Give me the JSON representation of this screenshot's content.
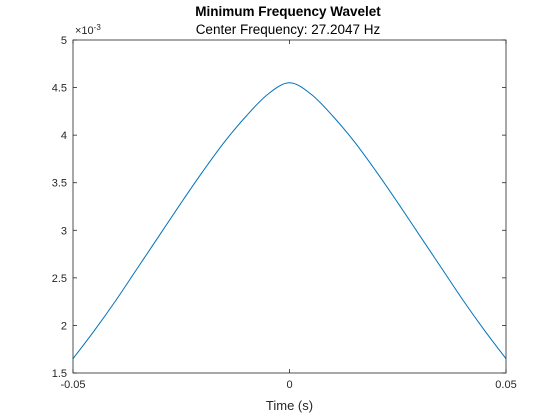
{
  "chart_data": {
    "type": "line",
    "title": "Minimum Frequency Wavelet",
    "subtitle": "Center Frequency: 27.2047 Hz",
    "xlabel": "Time (s)",
    "ylabel": "",
    "y_exponent_label": "×10",
    "y_exponent_power": "-3",
    "xlim": [
      -0.05,
      0.05
    ],
    "ylim": [
      1.5,
      5
    ],
    "x_ticks": [
      -0.05,
      0,
      0.05
    ],
    "x_tick_labels": [
      "-0.05",
      "0",
      "0.05"
    ],
    "y_ticks": [
      1.5,
      2,
      2.5,
      3,
      3.5,
      4,
      4.5,
      5
    ],
    "y_tick_labels": [
      "1.5",
      "2",
      "2.5",
      "3",
      "3.5",
      "4",
      "4.5",
      "5"
    ],
    "grid": false,
    "legend": "none",
    "series": [
      {
        "color": "#0072BD",
        "x": [
          -0.05,
          -0.045,
          -0.04,
          -0.035,
          -0.03,
          -0.025,
          -0.02,
          -0.015,
          -0.01,
          -0.005,
          0,
          0.005,
          0.01,
          0.015,
          0.02,
          0.025,
          0.03,
          0.035,
          0.04,
          0.045,
          0.05
        ],
        "y": [
          1.65,
          1.95,
          2.27,
          2.61,
          2.95,
          3.29,
          3.62,
          3.93,
          4.2,
          4.43,
          4.55,
          4.43,
          4.2,
          3.93,
          3.62,
          3.29,
          2.95,
          2.61,
          2.27,
          1.95,
          1.65
        ]
      }
    ]
  }
}
